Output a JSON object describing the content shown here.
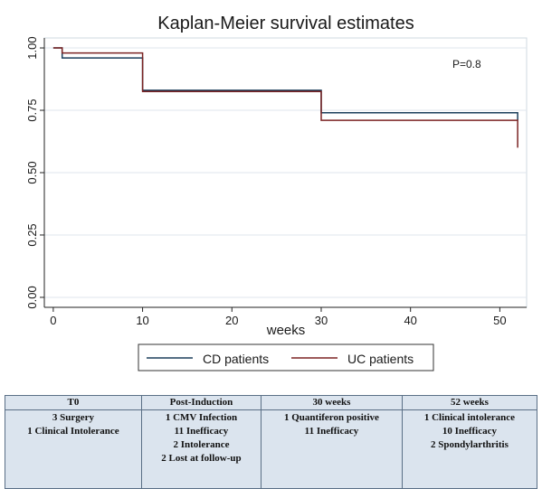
{
  "chart_data": {
    "type": "line",
    "title": "Kaplan-Meier survival estimates",
    "xlabel": "weeks",
    "ylabel": "",
    "xlim": [
      -1,
      53
    ],
    "ylim": [
      -0.04,
      1.04
    ],
    "xticks": [
      0,
      10,
      20,
      30,
      40,
      50
    ],
    "yticks": [
      0,
      0.25,
      0.5,
      0.75,
      1
    ],
    "ytick_labels": [
      "0.00",
      "0.25",
      "0.50",
      "0.75",
      "1.00"
    ],
    "grid": true,
    "legend_position": "bottom",
    "annotation": "P=0.8",
    "series": [
      {
        "name": "CD patients",
        "color": "#1b3f5c",
        "x": [
          0,
          1,
          1,
          10,
          10,
          30,
          30,
          52,
          52
        ],
        "y": [
          1.0,
          1.0,
          0.96,
          0.96,
          0.83,
          0.83,
          0.74,
          0.74,
          0.71
        ]
      },
      {
        "name": "UC patients",
        "color": "#7b2323",
        "x": [
          0,
          1,
          1,
          10,
          10,
          30,
          30,
          52,
          52
        ],
        "y": [
          1.0,
          1.0,
          0.98,
          0.98,
          0.825,
          0.825,
          0.71,
          0.71,
          0.6
        ]
      }
    ]
  },
  "table": {
    "columns": [
      {
        "header": "T0",
        "items": [
          "3 Surgery",
          "1 Clinical Intolerance"
        ]
      },
      {
        "header": "Post-Induction",
        "items": [
          "1 CMV Infection",
          "11 Inefficacy",
          "2 Intolerance",
          "2 Lost at follow-up"
        ]
      },
      {
        "header": "30 weeks",
        "items": [
          "1 Quantiferon positive",
          "11 Inefficacy"
        ]
      },
      {
        "header": "52 weeks",
        "items": [
          "1 Clinical intolerance",
          "10 Inefficacy",
          "2 Spondylarthritis"
        ]
      }
    ]
  },
  "colors": {
    "panel_bg": "#ffffff",
    "plot_bg": "#ffffff",
    "grid": "#dfe6ec",
    "table_bg": "#dbe4ee",
    "border": "#5a6f86"
  }
}
